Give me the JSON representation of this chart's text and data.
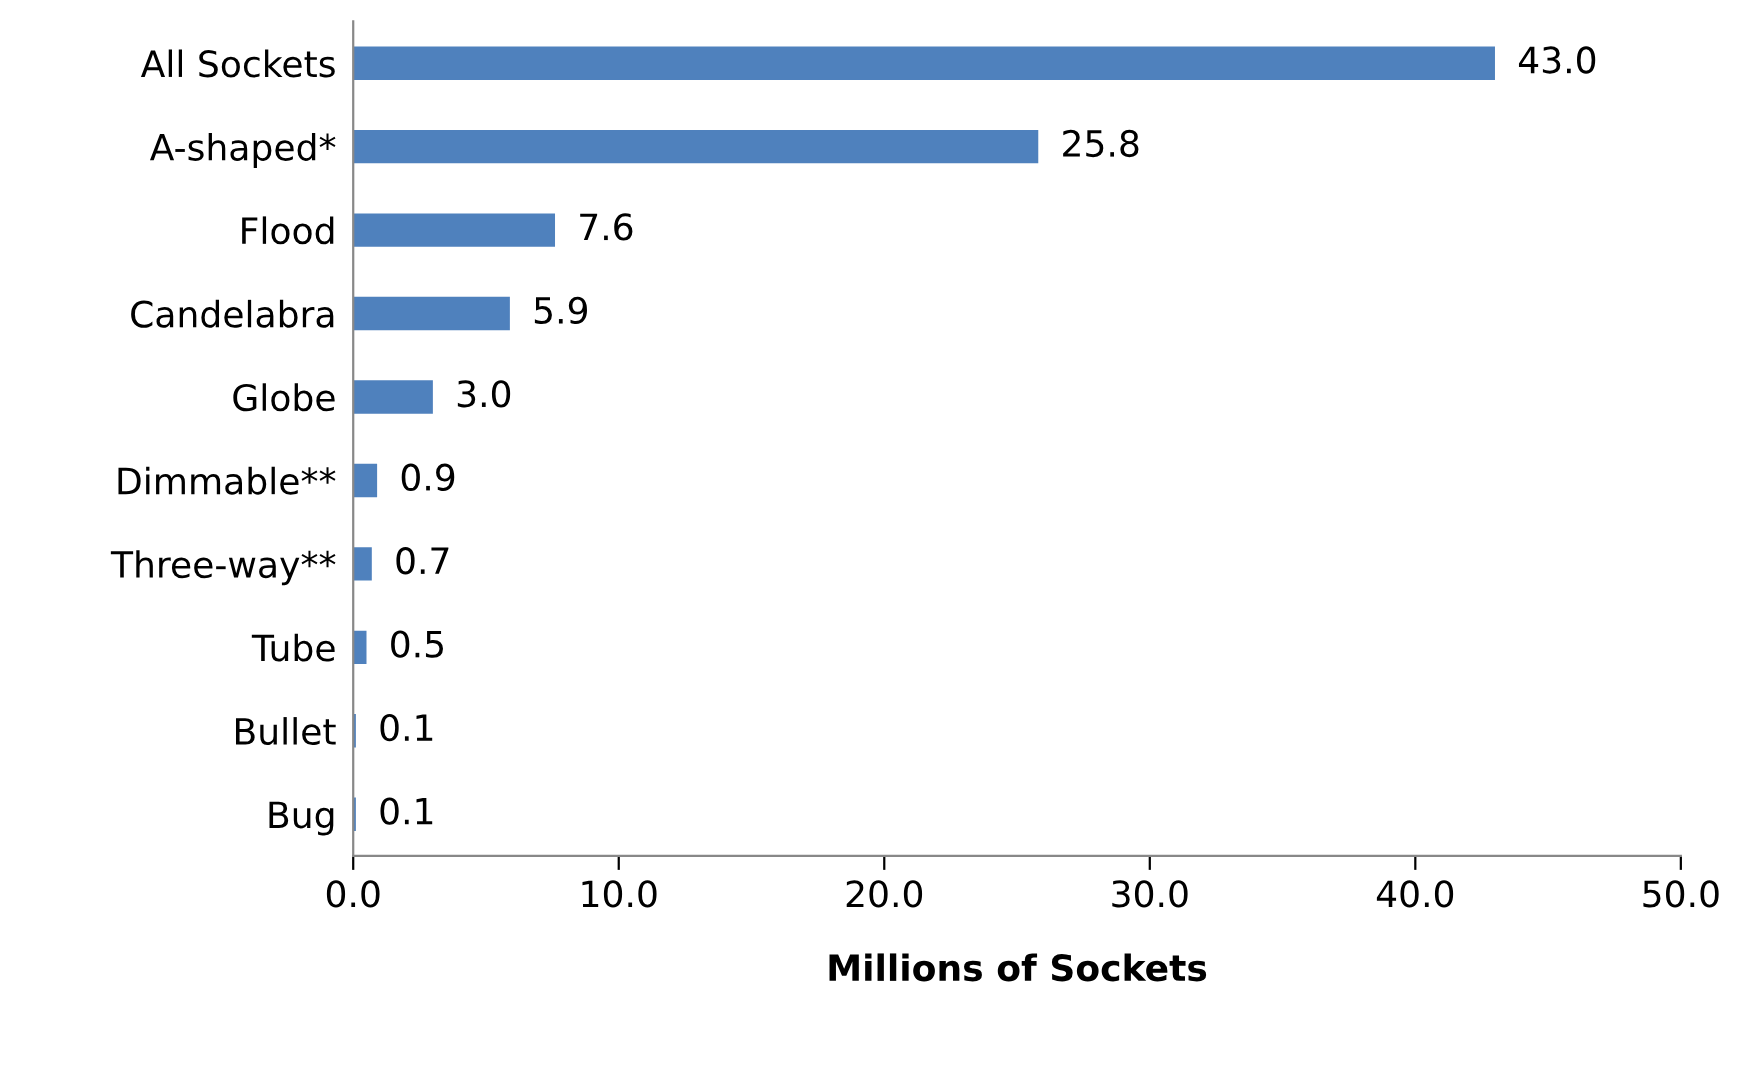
{
  "chart_data": {
    "type": "bar",
    "orientation": "horizontal",
    "xlabel": "Millions of Sockets",
    "categories": [
      "All Sockets",
      "A-shaped*",
      "Flood",
      "Candelabra",
      "Globe",
      "Dimmable**",
      "Three-way**",
      "Tube",
      "Bullet",
      "Bug"
    ],
    "values": [
      43.0,
      25.8,
      7.6,
      5.9,
      3.0,
      0.9,
      0.7,
      0.5,
      0.1,
      0.1
    ],
    "value_labels": [
      "43.0",
      "25.8",
      "7.6",
      "5.9",
      "3.0",
      "0.9",
      "0.7",
      "0.5",
      "0.1",
      "0.1"
    ],
    "color": "#4f81bd",
    "xlim": [
      0,
      50
    ],
    "xticks": [
      {
        "value": 0,
        "label": "0.0"
      },
      {
        "value": 10,
        "label": "10.0"
      },
      {
        "value": 20,
        "label": "20.0"
      },
      {
        "value": 30,
        "label": "30.0"
      },
      {
        "value": 40,
        "label": "40.0"
      },
      {
        "value": 50,
        "label": "50.0"
      }
    ],
    "grid": false,
    "legend": false
  }
}
